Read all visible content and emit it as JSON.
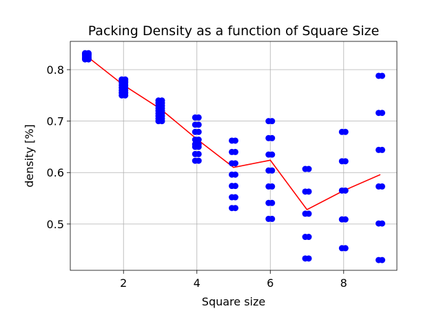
{
  "chart_data": {
    "type": "scatter",
    "title": "Packing Density as a function of Square Size",
    "xlabel": "Square size",
    "ylabel": "density [%]",
    "xlim": [
      0.55,
      9.45
    ],
    "ylim": [
      0.41,
      0.855
    ],
    "xticks": [
      2,
      4,
      6,
      8
    ],
    "yticks": [
      0.5,
      0.6,
      0.7,
      0.8
    ],
    "grid": true,
    "colors": {
      "scatter": "#0000ff",
      "line": "#ff0000"
    },
    "series": [
      {
        "type": "scatter",
        "points": [
          [
            1,
            0.82
          ],
          [
            1,
            0.822
          ],
          [
            1,
            0.825
          ],
          [
            1,
            0.828
          ],
          [
            1,
            0.83
          ],
          [
            1,
            0.832
          ],
          [
            2,
            0.75
          ],
          [
            2,
            0.755
          ],
          [
            2,
            0.76
          ],
          [
            2,
            0.765
          ],
          [
            2,
            0.77
          ],
          [
            2,
            0.775
          ],
          [
            2,
            0.778
          ],
          [
            2,
            0.781
          ],
          [
            3,
            0.7
          ],
          [
            3,
            0.705
          ],
          [
            3,
            0.71
          ],
          [
            3,
            0.715
          ],
          [
            3,
            0.72
          ],
          [
            3,
            0.725
          ],
          [
            3,
            0.73
          ],
          [
            3,
            0.735
          ],
          [
            3,
            0.74
          ],
          [
            4,
            0.623
          ],
          [
            4,
            0.636
          ],
          [
            4,
            0.65
          ],
          [
            4,
            0.655
          ],
          [
            4,
            0.664
          ],
          [
            4,
            0.679
          ],
          [
            4,
            0.693
          ],
          [
            4,
            0.707
          ],
          [
            5,
            0.531
          ],
          [
            5,
            0.552
          ],
          [
            5,
            0.574
          ],
          [
            5,
            0.596
          ],
          [
            5,
            0.618
          ],
          [
            5,
            0.64
          ],
          [
            5,
            0.662
          ],
          [
            6,
            0.51
          ],
          [
            6,
            0.541
          ],
          [
            6,
            0.573
          ],
          [
            6,
            0.604
          ],
          [
            6,
            0.635
          ],
          [
            6,
            0.667
          ],
          [
            6,
            0.7
          ],
          [
            7,
            0.433
          ],
          [
            7,
            0.475
          ],
          [
            7,
            0.52
          ],
          [
            7,
            0.563
          ],
          [
            7,
            0.607
          ],
          [
            8,
            0.453
          ],
          [
            8,
            0.509
          ],
          [
            8,
            0.565
          ],
          [
            8,
            0.622
          ],
          [
            8,
            0.679
          ],
          [
            9,
            0.43
          ],
          [
            9,
            0.501
          ],
          [
            9,
            0.573
          ],
          [
            9,
            0.644
          ],
          [
            9,
            0.716
          ],
          [
            9,
            0.788
          ]
        ]
      },
      {
        "type": "line",
        "x": [
          1,
          2,
          3,
          4,
          5,
          6,
          7,
          8,
          9
        ],
        "y": [
          0.826,
          0.77,
          0.724,
          0.665,
          0.61,
          0.624,
          0.528,
          0.565,
          0.596
        ]
      }
    ]
  }
}
